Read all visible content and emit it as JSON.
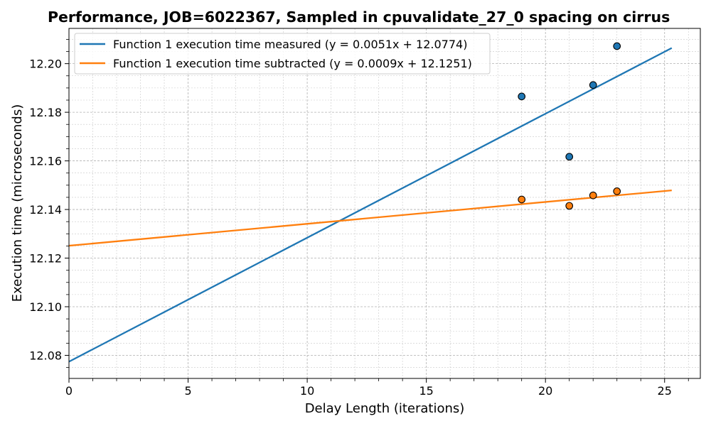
{
  "chart_data": {
    "type": "scatter",
    "title": "Performance, JOB=6022367, Sampled in cpuvalidate_27_0 spacing on cirrus",
    "xlabel": "Delay Length (iterations)",
    "ylabel": "Execution time (microseconds)",
    "xlim": [
      0,
      26.5
    ],
    "ylim": [
      12.0705,
      12.2145
    ],
    "x_ticks": [
      0,
      5,
      10,
      15,
      20,
      25
    ],
    "y_ticks": [
      12.08,
      12.1,
      12.12,
      12.14,
      12.16,
      12.18,
      12.2
    ],
    "x_tick_labels": [
      "0",
      "5",
      "10",
      "15",
      "20",
      "25"
    ],
    "y_tick_labels": [
      "12.08",
      "12.10",
      "12.12",
      "12.14",
      "12.16",
      "12.18",
      "12.20"
    ],
    "grid": true,
    "legend_position": "top-left",
    "series": [
      {
        "name": "Function 1 execution time measured (y = 0.0051x + 12.0774)",
        "color": "#1f77b4",
        "points": [
          [
            19,
            12.1865
          ],
          [
            21,
            12.1617
          ],
          [
            22,
            12.1912
          ],
          [
            23,
            12.2072
          ]
        ],
        "fit": {
          "slope": 0.0051,
          "intercept": 12.0774,
          "x_range": [
            0,
            25.3
          ]
        }
      },
      {
        "name": "Function 1 execution time subtracted (y = 0.0009x + 12.1251)",
        "color": "#ff7f0e",
        "points": [
          [
            19,
            12.1441
          ],
          [
            21,
            12.1415
          ],
          [
            22,
            12.1458
          ],
          [
            23,
            12.1475
          ]
        ],
        "fit": {
          "slope": 0.0009,
          "intercept": 12.1251,
          "x_range": [
            0,
            25.3
          ]
        }
      }
    ]
  }
}
